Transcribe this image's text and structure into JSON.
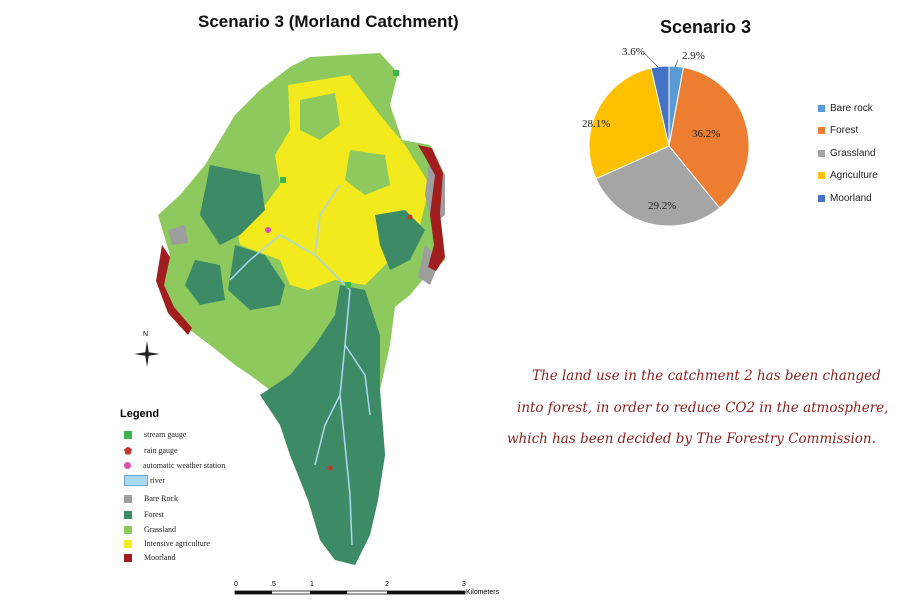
{
  "map": {
    "title": "Scenario 3 (Morland Catchment)",
    "legend_title": "Legend",
    "north_label": "N",
    "legend": [
      {
        "label": "stream gauge",
        "color": "#3cb54a",
        "kind": "square"
      },
      {
        "label": "rain gauge",
        "color": "#c0392b",
        "kind": "pentagon"
      },
      {
        "label": "automatic weather station",
        "color": "#d94fb0",
        "kind": "circle"
      },
      {
        "label": "river",
        "color": "#a9d8f0",
        "kind": "river"
      },
      {
        "label": "Bare Rock",
        "color": "#9e9e9e",
        "kind": "square"
      },
      {
        "label": "Forest",
        "color": "#3d8a67",
        "kind": "square"
      },
      {
        "label": "Grassland",
        "color": "#8dc95c",
        "kind": "square"
      },
      {
        "label": "Intensive agriculture",
        "color": "#f2ea1c",
        "kind": "square"
      },
      {
        "label": "Moorland",
        "color": "#a01e1e",
        "kind": "square"
      }
    ],
    "scale": {
      "ticks": [
        "0",
        ".5",
        "1",
        "2",
        "3"
      ],
      "unit": "Kilometers"
    }
  },
  "note_lines": [
    "The land use in the catchment 2 has been changed",
    "into forest, in order to reduce CO2 in the atmosphere,",
    "which has been decided by The Forestry Commission."
  ],
  "chart_data": {
    "type": "pie",
    "title": "Scenario 3",
    "categories": [
      "Bare rock",
      "Forest",
      "Grassland",
      "Agriculture",
      "Moorland"
    ],
    "values": [
      2.9,
      36.2,
      29.2,
      28.1,
      3.6
    ],
    "labels": [
      "2.9%",
      "36.2%",
      "29.2%",
      "28.1%",
      "3.6%"
    ],
    "colors": [
      "#5b9bd5",
      "#ed7d31",
      "#a5a5a5",
      "#ffc000",
      "#4472c4"
    ],
    "legend_position": "right"
  }
}
